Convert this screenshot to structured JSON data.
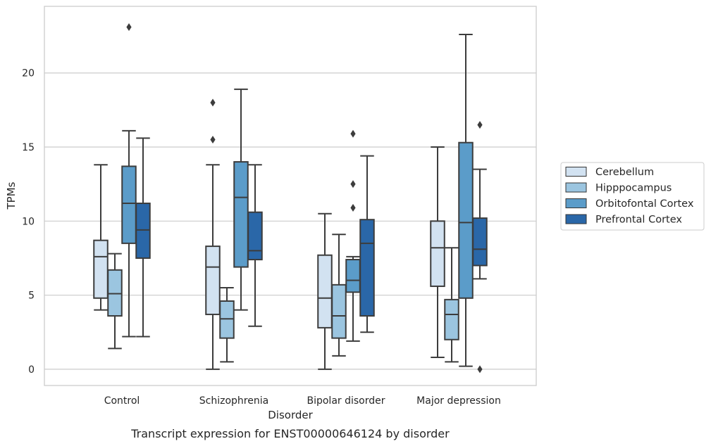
{
  "chart_data": {
    "type": "boxplot",
    "title": "",
    "caption": "Transcript expression for ENST00000646124 by disorder",
    "xlabel": "Disorder",
    "ylabel": "TPMs",
    "ylim": [
      -1.1,
      24.5
    ],
    "yticks": [
      0,
      5,
      10,
      15,
      20
    ],
    "grid": "horizontal",
    "legend_position": "right",
    "categories": [
      "Control",
      "Schizophrenia",
      "Bipolar disorder",
      "Major depression"
    ],
    "series": [
      {
        "name": "Cerebellum",
        "color": "#d2e2f1",
        "boxes": [
          {
            "whisker_low": 4.0,
            "q1": 4.8,
            "median": 7.6,
            "q3": 8.7,
            "whisker_high": 13.8,
            "outliers": []
          },
          {
            "whisker_low": 0.0,
            "q1": 3.7,
            "median": 6.9,
            "q3": 8.3,
            "whisker_high": 13.8,
            "outliers": [
              15.5,
              18.0
            ]
          },
          {
            "whisker_low": 0.0,
            "q1": 2.8,
            "median": 4.8,
            "q3": 7.7,
            "whisker_high": 10.5,
            "outliers": []
          },
          {
            "whisker_low": 0.8,
            "q1": 5.6,
            "median": 8.2,
            "q3": 10.0,
            "whisker_high": 15.0,
            "outliers": []
          }
        ]
      },
      {
        "name": "Hipppocampus",
        "color": "#9bc5e0",
        "boxes": [
          {
            "whisker_low": 1.4,
            "q1": 3.6,
            "median": 5.1,
            "q3": 6.7,
            "whisker_high": 7.8,
            "outliers": []
          },
          {
            "whisker_low": 0.5,
            "q1": 2.1,
            "median": 3.4,
            "q3": 4.6,
            "whisker_high": 5.5,
            "outliers": []
          },
          {
            "whisker_low": 0.9,
            "q1": 2.1,
            "median": 3.6,
            "q3": 5.7,
            "whisker_high": 9.1,
            "outliers": []
          },
          {
            "whisker_low": 0.5,
            "q1": 2.0,
            "median": 3.7,
            "q3": 4.7,
            "whisker_high": 8.2,
            "outliers": []
          }
        ]
      },
      {
        "name": "Orbitofontal Cortex",
        "color": "#5b9cc9",
        "boxes": [
          {
            "whisker_low": 2.2,
            "q1": 8.5,
            "median": 11.2,
            "q3": 13.7,
            "whisker_high": 16.1,
            "outliers": [
              23.1
            ]
          },
          {
            "whisker_low": 4.0,
            "q1": 6.9,
            "median": 11.6,
            "q3": 14.0,
            "whisker_high": 18.9,
            "outliers": []
          },
          {
            "whisker_low": 1.9,
            "q1": 5.2,
            "median": 6.0,
            "q3": 7.4,
            "whisker_high": 7.6,
            "outliers": [
              10.9,
              12.5,
              15.9
            ]
          },
          {
            "whisker_low": 0.2,
            "q1": 4.8,
            "median": 9.9,
            "q3": 15.3,
            "whisker_high": 22.6,
            "outliers": []
          }
        ]
      },
      {
        "name": "Prefrontal Cortex",
        "color": "#2a67a8",
        "boxes": [
          {
            "whisker_low": 2.2,
            "q1": 7.5,
            "median": 9.4,
            "q3": 11.2,
            "whisker_high": 15.6,
            "outliers": []
          },
          {
            "whisker_low": 2.9,
            "q1": 7.4,
            "median": 8.0,
            "q3": 10.6,
            "whisker_high": 13.8,
            "outliers": []
          },
          {
            "whisker_low": 2.5,
            "q1": 3.6,
            "median": 8.5,
            "q3": 10.1,
            "whisker_high": 14.4,
            "outliers": []
          },
          {
            "whisker_low": 6.1,
            "q1": 7.0,
            "median": 8.1,
            "q3": 10.2,
            "whisker_high": 13.5,
            "outliers": [
              0.0,
              16.5
            ]
          }
        ]
      }
    ]
  }
}
